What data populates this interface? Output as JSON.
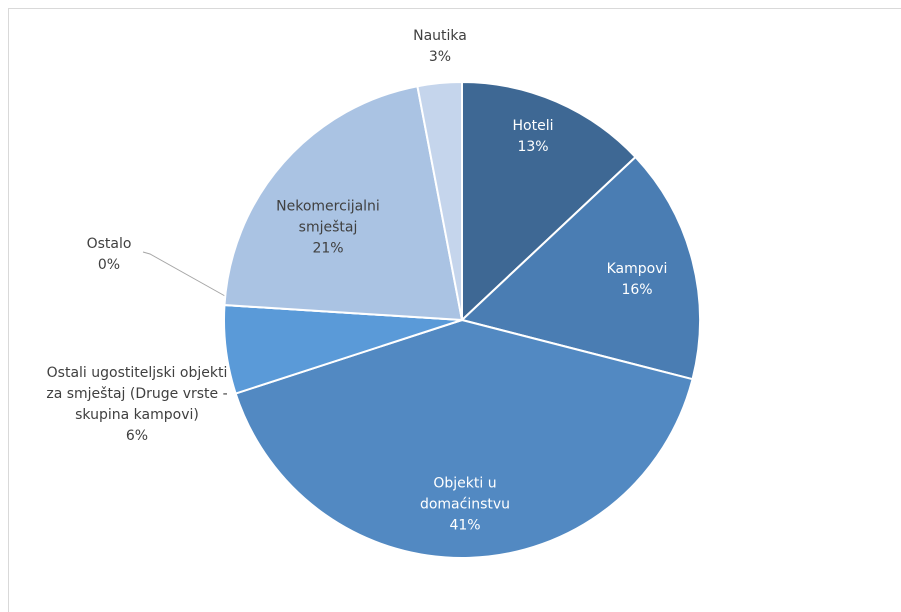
{
  "chart_data": {
    "type": "pie",
    "categories": [
      "Hoteli",
      "Kampovi",
      "Objekti u domaćinstvu",
      "Ostali ugostiteljski objekti za smještaj (Druge vrste - skupina kampovi)",
      "Ostalo",
      "Nekomercijalni smještaj",
      "Nautika"
    ],
    "values": [
      13,
      16,
      41,
      6,
      0,
      21,
      3
    ],
    "value_labels": [
      "13%",
      "16%",
      "41%",
      "6%",
      "0%",
      "21%",
      "3%"
    ],
    "colors": [
      "#3e6894",
      "#4a7db3",
      "#5289c2",
      "#5a9ad8",
      "#7fa6d4",
      "#aac3e3",
      "#c5d5ec"
    ]
  }
}
